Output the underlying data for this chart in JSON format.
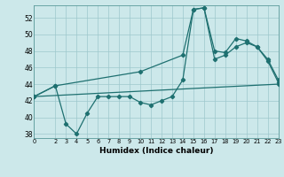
{
  "xlabel": "Humidex (Indice chaleur)",
  "bg_color": "#cce8ea",
  "grid_color": "#9ec8cc",
  "line_color": "#1e7070",
  "xlim": [
    0,
    23
  ],
  "ylim": [
    37.5,
    53.5
  ],
  "yticks": [
    38,
    40,
    42,
    44,
    46,
    48,
    50,
    52
  ],
  "xtick_labels": [
    "0",
    "2",
    "3",
    "4",
    "5",
    "6",
    "7",
    "8",
    "9",
    "10",
    "11",
    "12",
    "13",
    "14",
    "15",
    "16",
    "17",
    "18",
    "19",
    "20",
    "21",
    "22",
    "23"
  ],
  "xtick_pos": [
    0,
    2,
    3,
    4,
    5,
    6,
    7,
    8,
    9,
    10,
    11,
    12,
    13,
    14,
    15,
    16,
    17,
    18,
    19,
    20,
    21,
    22,
    23
  ],
  "line1_x": [
    0,
    2,
    3,
    4,
    5,
    6,
    7,
    8,
    9,
    10,
    11,
    12,
    13,
    14,
    15,
    16,
    17,
    18,
    19,
    20,
    21,
    22,
    23
  ],
  "line1_y": [
    42.5,
    43.8,
    39.2,
    38.0,
    40.5,
    42.5,
    42.5,
    42.5,
    42.5,
    41.8,
    41.5,
    42.0,
    42.5,
    44.5,
    53.0,
    53.2,
    47.0,
    47.5,
    48.5,
    49.0,
    48.5,
    47.0,
    44.5
  ],
  "line2_x": [
    0,
    23
  ],
  "line2_y": [
    42.5,
    44.0
  ],
  "line3_x": [
    0,
    2,
    10,
    14,
    15,
    16,
    17,
    18,
    19,
    20,
    21,
    22,
    23
  ],
  "line3_y": [
    42.5,
    43.8,
    45.5,
    47.5,
    53.0,
    53.2,
    48.0,
    47.8,
    49.5,
    49.2,
    48.5,
    46.8,
    44.2
  ]
}
